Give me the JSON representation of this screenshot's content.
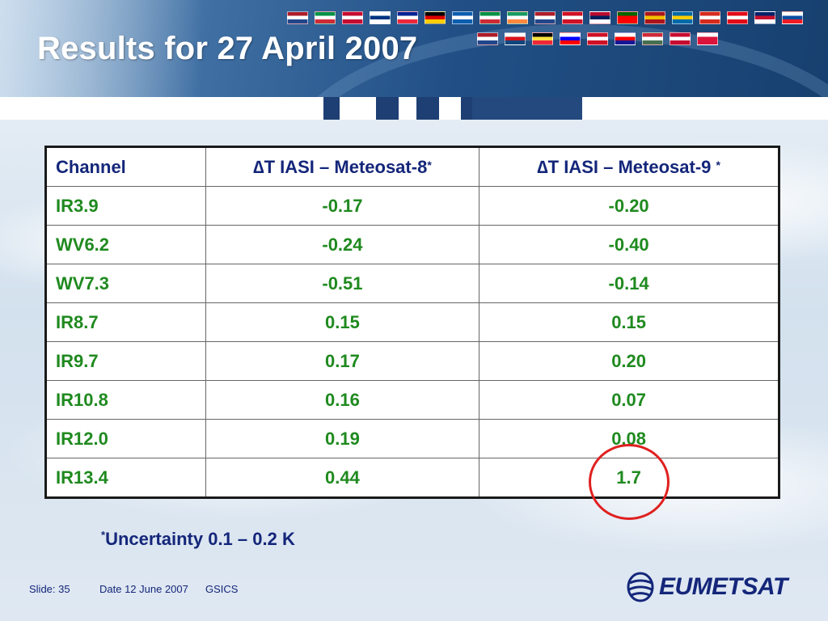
{
  "slide": {
    "title": "Results for 27 April 2007"
  },
  "table": {
    "headers": {
      "channel": "Channel",
      "col1": "∆T IASI – Meteosat-8",
      "col1_mark": "*",
      "col2": "∆T IASI – Meteosat-9 ",
      "col2_mark": "*"
    },
    "rows": [
      {
        "channel": "IR3.9",
        "met8": "-0.17",
        "met9": "-0.20"
      },
      {
        "channel": "WV6.2",
        "met8": "-0.24",
        "met9": "-0.40"
      },
      {
        "channel": "WV7.3",
        "met8": "-0.51",
        "met9": "-0.14"
      },
      {
        "channel": "IR8.7",
        "met8": "0.15",
        "met9": "0.15"
      },
      {
        "channel": "IR9.7",
        "met8": "0.17",
        "met9": "0.20"
      },
      {
        "channel": "IR10.8",
        "met8": "0.16",
        "met9": "0.07"
      },
      {
        "channel": "IR12.0",
        "met8": "0.19",
        "met9": "0.08"
      },
      {
        "channel": "IR13.4",
        "met8": "0.44",
        "met9": "1.7"
      }
    ],
    "highlight_color": "#e02020"
  },
  "note": {
    "mark": "*",
    "text": "Uncertainty 0.1 – 0.2 K"
  },
  "footer": {
    "slide_label": "Slide: 35",
    "date_label": "Date 12 June 2007",
    "org_label": "GSICS"
  },
  "logo": {
    "text": "EUMETSAT",
    "icon": "eumetsat-globe-icon"
  },
  "colors": {
    "title": "#ffffff",
    "header_text": "#14267a",
    "value_text": "#1f8a1f"
  }
}
